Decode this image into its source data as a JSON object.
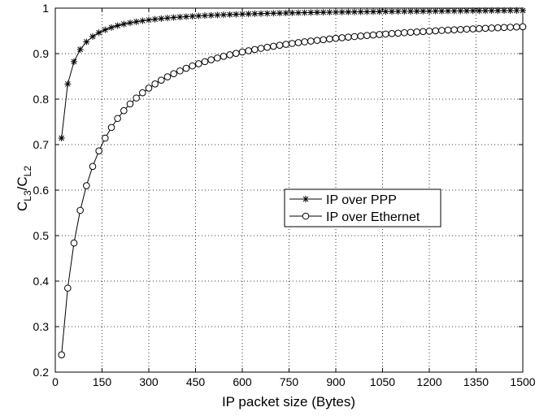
{
  "chart_data": {
    "type": "line",
    "title": "",
    "xlabel": "IP packet size (Bytes)",
    "ylabel": {
      "base": "C",
      "sub1": "L3",
      "sep": "/C",
      "sub2": "L2"
    },
    "xlim": [
      0,
      1500
    ],
    "ylim": [
      0.2,
      1.0
    ],
    "xticks": [
      "0",
      "150",
      "300",
      "450",
      "600",
      "750",
      "900",
      "1050",
      "1200",
      "1350",
      "1500"
    ],
    "yticks": [
      "0.2",
      "0.3",
      "0.4",
      "0.5",
      "0.6",
      "0.7",
      "0.8",
      "0.9",
      "1"
    ],
    "grid": true,
    "legend_position": "center-right",
    "series": [
      {
        "name": "IP over PPP",
        "marker": "star",
        "color": "#000000",
        "overhead": 8
      },
      {
        "name": "IP over Ethernet",
        "marker": "circle",
        "color": "#000000",
        "overhead": 64
      }
    ],
    "x_start": 20,
    "x_step": 20,
    "x_end": 1500
  }
}
